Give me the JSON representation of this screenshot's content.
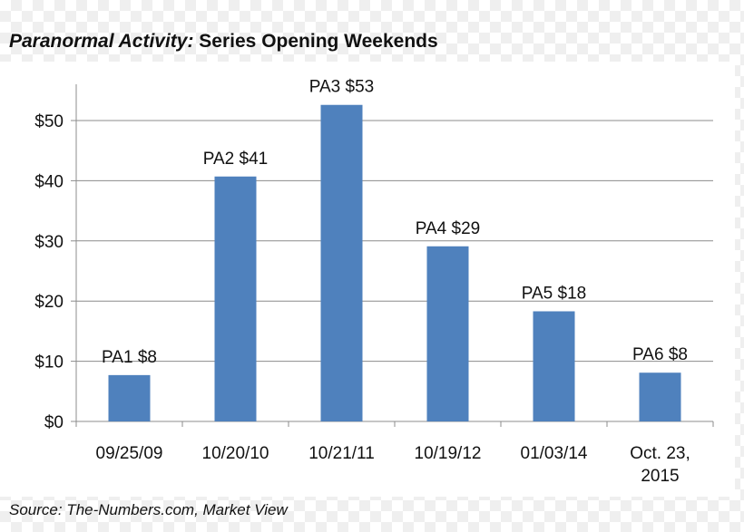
{
  "page": {
    "title_italic": "Paranormal Activity:",
    "title_rest": " Series Opening Weekends",
    "source": "Source: The-Numbers.com, Market View"
  },
  "chart_data": {
    "type": "bar",
    "title": "Paranormal Activity: Series Opening Weekends",
    "xlabel": "",
    "ylabel": "",
    "categories": [
      [
        "09/25/09"
      ],
      [
        "10/20/10"
      ],
      [
        "10/21/11"
      ],
      [
        "10/19/12"
      ],
      [
        "01/03/14"
      ],
      [
        "Oct. 23,",
        "2015"
      ]
    ],
    "values": [
      7.7,
      40.7,
      52.6,
      29.1,
      18.3,
      8.1
    ],
    "data_labels": [
      "PA1 $8",
      "PA2 $41",
      "PA3 $53",
      "PA4 $29",
      "PA5 $18",
      "PA6 $8"
    ],
    "ylim": [
      0,
      50
    ],
    "yticks": [
      0,
      10,
      20,
      30,
      40,
      50
    ],
    "ytick_labels": [
      "$0",
      "$10",
      "$20",
      "$30",
      "$40",
      "$50"
    ],
    "grid": true,
    "bar_color": "#4f81bd"
  }
}
